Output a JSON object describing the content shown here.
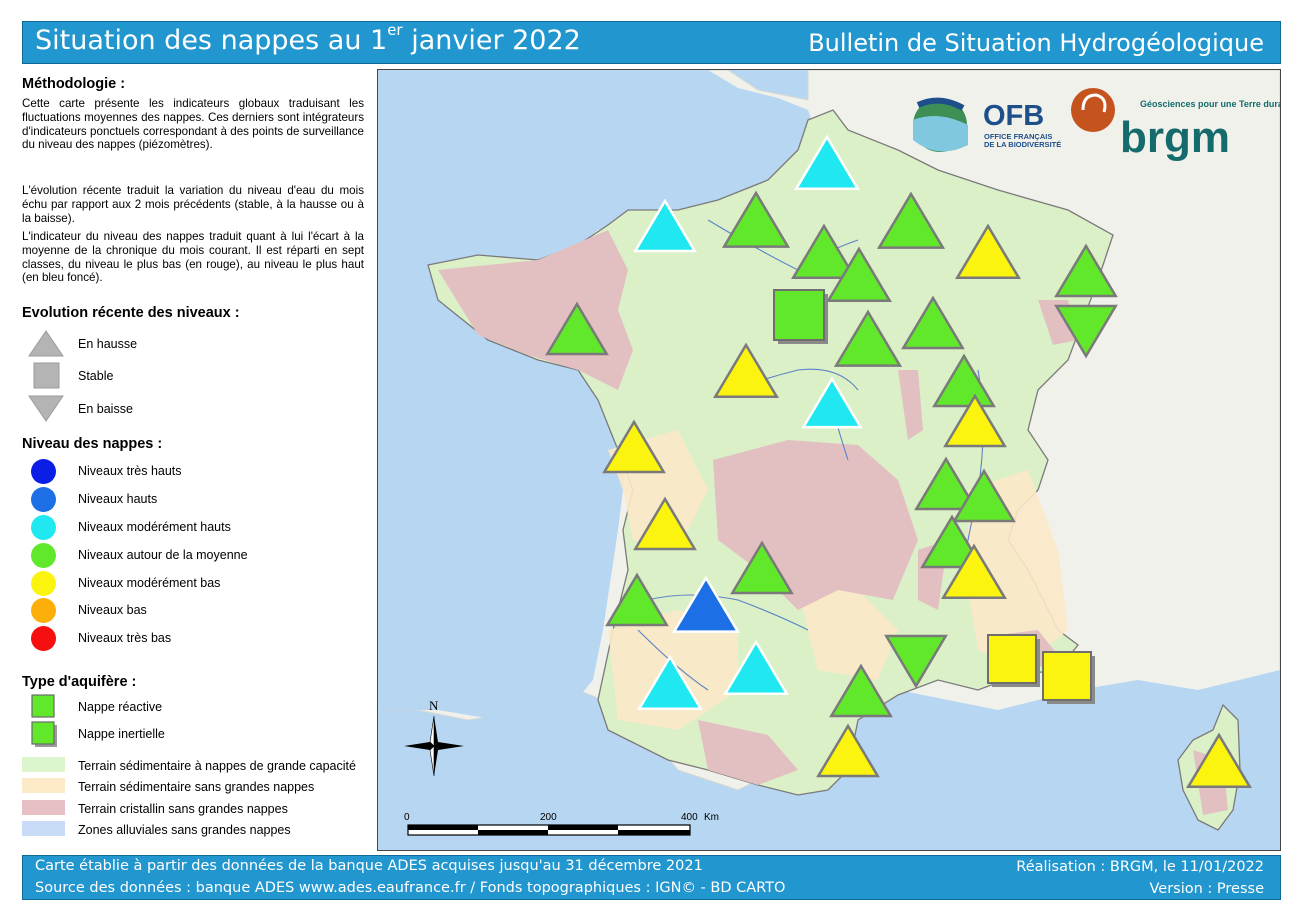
{
  "header": {
    "title": "Situation des nappes au 1",
    "title_sup": "er",
    "title_rest": " janvier 2022",
    "subtitle": "Bulletin de Situation Hydrogéologique"
  },
  "methodology": {
    "title": "Méthodologie :",
    "p1": "Cette carte présente les indicateurs globaux traduisant les fluctuations moyennes des nappes. Ces derniers sont intégrateurs d'indicateurs ponctuels correspondant à des points de surveillance du niveau des nappes (piézomètres).",
    "p2": "L'évolution récente traduit la variation du niveau d'eau du mois échu par rapport aux 2 mois précédents (stable, à la hausse ou à la baisse).",
    "p3": "L'indicateur du niveau des nappes traduit quant à lui l'écart à la moyenne de la chronique du mois courant. Il est réparti en sept classes, du niveau le plus bas (en rouge), au niveau le plus haut (en bleu foncé)."
  },
  "evolution": {
    "title": "Evolution récente des niveaux :",
    "items": [
      {
        "label": "En hausse",
        "icon": "triangle-up-icon"
      },
      {
        "label": "Stable",
        "icon": "square-icon"
      },
      {
        "label": "En baisse",
        "icon": "triangle-down-icon"
      }
    ]
  },
  "levels": {
    "title": "Niveau des nappes :",
    "items": [
      {
        "label": "Niveaux très hauts",
        "color": "#0a1ee6"
      },
      {
        "label": "Niveaux hauts",
        "color": "#1c6fe4"
      },
      {
        "label": "Niveaux modérément hauts",
        "color": "#1fe8f0"
      },
      {
        "label": "Niveaux autour de la moyenne",
        "color": "#62e82a"
      },
      {
        "label": "Niveaux modérément bas",
        "color": "#fbf40f"
      },
      {
        "label": "Niveaux bas",
        "color": "#fcae0a"
      },
      {
        "label": "Niveaux très bas",
        "color": "#f5100f"
      }
    ]
  },
  "aquifer": {
    "title": "Type d'aquifère :",
    "items": [
      {
        "label": "Nappe réactive",
        "icon": "reactive-square-icon"
      },
      {
        "label": "Nappe inertielle",
        "icon": "inertial-square-icon"
      }
    ],
    "terrains": [
      {
        "label": "Terrain sédimentaire à nappes de grande capacité",
        "color": "#dcf5cc"
      },
      {
        "label": "Terrain sédimentaire sans grandes nappes",
        "color": "#fbe9c8"
      },
      {
        "label": "Terrain cristallin sans grandes nappes",
        "color": "#e6c0c4"
      },
      {
        "label": "Zones alluviales sans grandes nappes",
        "color": "#c9dcf7"
      }
    ]
  },
  "map": {
    "north_label": "N",
    "scale": {
      "labels": [
        "0",
        "200",
        "400"
      ],
      "unit": "Km"
    },
    "logos": {
      "ofb_text": "OFB",
      "ofb_sub1": "OFFICE FRANÇAIS",
      "ofb_sub2": "DE LA BIODIVERSITÉ",
      "brgm_tagline": "Géosciences pour une Terre durable",
      "brgm_text": "brgm"
    },
    "colors": {
      "sea": "#b6d6f2",
      "neighbor_land": "#f1f1ec",
      "france_land": "#dcf0c8",
      "crystalline": "#e2c0c2",
      "sedimentary_no_aquifer": "#fbe9c8",
      "border": "#7a7a7a"
    }
  },
  "footer": {
    "line1": "Carte établie à partir des données de la banque ADES acquises jusqu'au 31 décembre 2021",
    "line2": "Source des données : banque ADES www.ades.eaufrance.fr / Fonds topographiques : IGN© - BD CARTO",
    "right1": "Réalisation : BRGM, le 11/01/2022",
    "right2": "Version : Presse"
  }
}
